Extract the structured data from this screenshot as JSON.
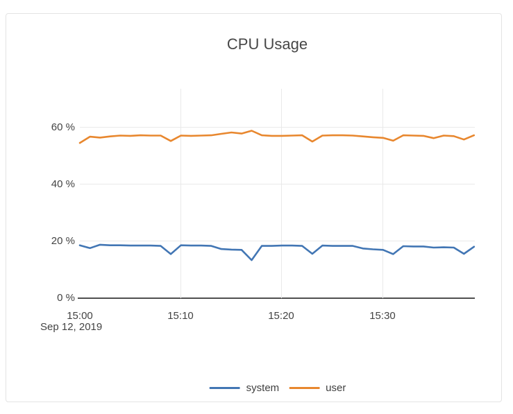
{
  "chart_data": {
    "type": "line",
    "title": "CPU Usage",
    "date_label": "Sep 12, 2019",
    "xlabel": "",
    "ylabel": "",
    "x_tick_labels": [
      "15:00",
      "15:10",
      "15:20",
      "15:30"
    ],
    "y_tick_labels": [
      "60 %",
      "40 %",
      "20 %",
      "0 %"
    ],
    "ylim": [
      0,
      70
    ],
    "x_range_minutes": [
      0,
      39
    ],
    "grid": true,
    "legend_position": "bottom-center",
    "x_times": [
      "15:00",
      "15:01",
      "15:02",
      "15:03",
      "15:04",
      "15:05",
      "15:06",
      "15:07",
      "15:08",
      "15:09",
      "15:10",
      "15:11",
      "15:12",
      "15:13",
      "15:14",
      "15:15",
      "15:16",
      "15:17",
      "15:18",
      "15:19",
      "15:20",
      "15:21",
      "15:22",
      "15:23",
      "15:24",
      "15:25",
      "15:26",
      "15:27",
      "15:28",
      "15:29",
      "15:30",
      "15:31",
      "15:32",
      "15:33",
      "15:34",
      "15:35",
      "15:36",
      "15:37",
      "15:38",
      "15:39"
    ],
    "series": [
      {
        "name": "system",
        "color": "#4276B4",
        "values": [
          18.6,
          17.6,
          18.8,
          18.6,
          18.6,
          18.5,
          18.5,
          18.5,
          18.4,
          15.5,
          18.6,
          18.5,
          18.5,
          18.4,
          17.3,
          17.1,
          17.0,
          13.4,
          18.4,
          18.4,
          18.5,
          18.5,
          18.4,
          15.6,
          18.5,
          18.4,
          18.4,
          18.4,
          17.5,
          17.2,
          17.0,
          15.5,
          18.3,
          18.2,
          18.2,
          17.8,
          17.9,
          17.8,
          15.6,
          18.1
        ]
      },
      {
        "name": "user",
        "color": "#E8872E",
        "values": [
          54.6,
          56.8,
          56.5,
          56.9,
          57.2,
          57.1,
          57.3,
          57.2,
          57.2,
          55.3,
          57.2,
          57.1,
          57.2,
          57.3,
          57.8,
          58.3,
          57.9,
          58.9,
          57.3,
          57.1,
          57.1,
          57.2,
          57.3,
          55.1,
          57.2,
          57.3,
          57.3,
          57.2,
          56.9,
          56.6,
          56.4,
          55.4,
          57.3,
          57.2,
          57.1,
          56.3,
          57.2,
          57.0,
          55.8,
          57.3
        ]
      }
    ],
    "colors": {
      "grid": "#E9E9E9",
      "axis": "#4F4F4F",
      "text": "#444444",
      "panel_border": "#E3E3E3",
      "background": "#FFFFFF"
    }
  }
}
